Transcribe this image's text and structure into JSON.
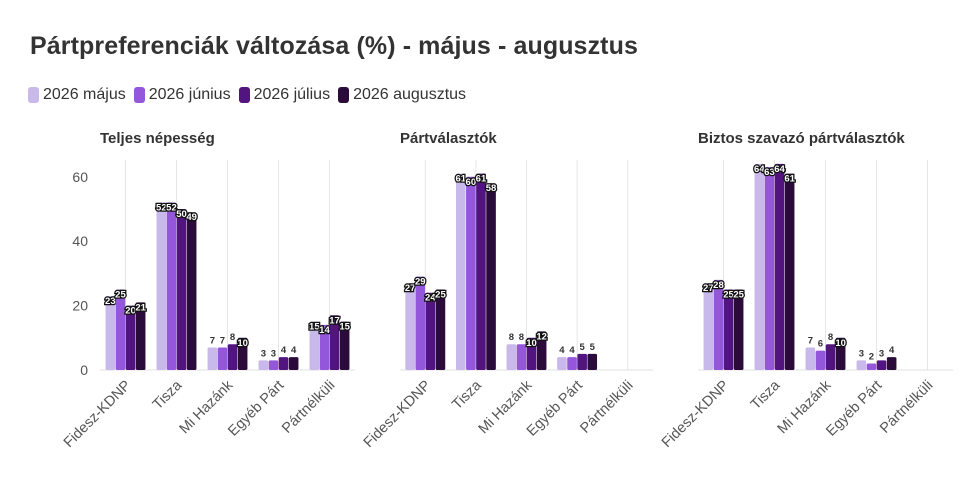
{
  "title": "Pártpreferenciák változása (%) - május - augusztus",
  "legend": [
    {
      "label": "2026 május",
      "color": "#c9b8ea"
    },
    {
      "label": "2026 június",
      "color": "#9457dc"
    },
    {
      "label": "2026 július",
      "color": "#52157f"
    },
    {
      "label": "2026 augusztus",
      "color": "#2a0b3a"
    }
  ],
  "chart_data": {
    "type": "bar",
    "categories": [
      "Fidesz-KDNP",
      "Tisza",
      "Mi Hazánk",
      "Egyéb Párt",
      "Pártnélküli"
    ],
    "y_ticks": [
      0,
      20,
      40,
      60
    ],
    "ylim": [
      0,
      65
    ],
    "grid": true,
    "legend_position": "top-left",
    "series_names": [
      "2026 május",
      "2026 június",
      "2026 július",
      "2026 augusztus"
    ],
    "panels": [
      {
        "title": "Teljes népesség",
        "series": [
          {
            "name": "2026 május",
            "values": [
              23,
              52,
              7,
              3,
              15
            ]
          },
          {
            "name": "2026 június",
            "values": [
              25,
              52,
              7,
              3,
              14
            ]
          },
          {
            "name": "2026 július",
            "values": [
              20,
              50,
              8,
              4,
              17
            ]
          },
          {
            "name": "2026 augusztus",
            "values": [
              21,
              49,
              10,
              4,
              15
            ]
          }
        ]
      },
      {
        "title": "Pártválasztók",
        "series": [
          {
            "name": "2026 május",
            "values": [
              27,
              61,
              8,
              4,
              null
            ]
          },
          {
            "name": "2026 június",
            "values": [
              29,
              60,
              8,
              4,
              null
            ]
          },
          {
            "name": "2026 július",
            "values": [
              24,
              61,
              10,
              5,
              null
            ]
          },
          {
            "name": "2026 augusztus",
            "values": [
              25,
              58,
              12,
              5,
              null
            ]
          }
        ]
      },
      {
        "title": "Biztos szavazó pártválasztók",
        "series": [
          {
            "name": "2026 május",
            "values": [
              27,
              64,
              7,
              3,
              null
            ]
          },
          {
            "name": "2026 június",
            "values": [
              28,
              63,
              6,
              2,
              null
            ]
          },
          {
            "name": "2026 július",
            "values": [
              25,
              64,
              8,
              3,
              null
            ]
          },
          {
            "name": "2026 augusztus",
            "values": [
              25,
              61,
              10,
              4,
              null
            ]
          }
        ]
      }
    ]
  }
}
